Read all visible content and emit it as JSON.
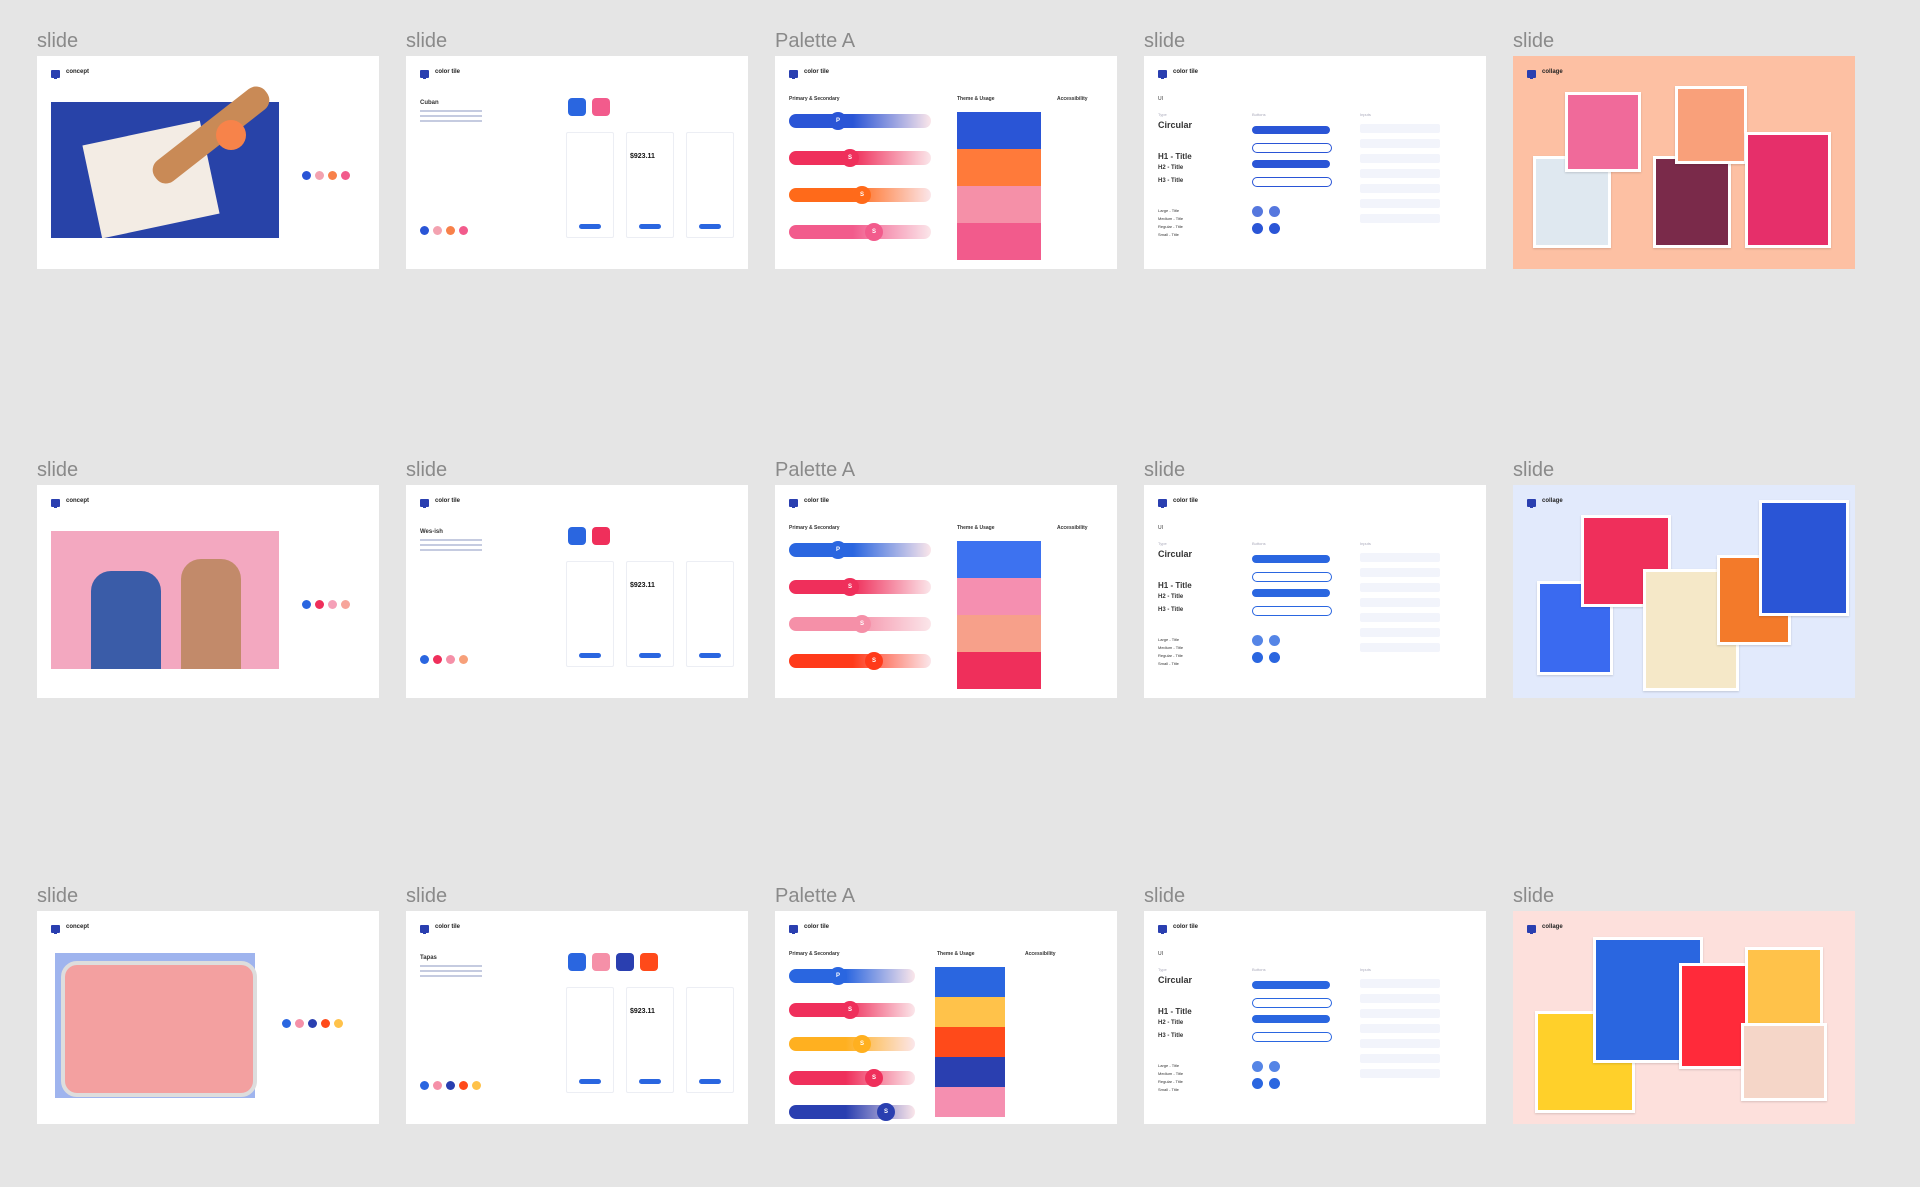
{
  "frames": [
    {
      "label": "slide",
      "kind": "concept",
      "title": "concept",
      "dots": [
        "#2a55d6",
        "#f3a2b0",
        "#f8814a",
        "#f25b8c"
      ]
    },
    {
      "label": "slide",
      "kind": "tile",
      "title": "color tile",
      "heading": "Cuban",
      "amount": "$923.11",
      "dots": [
        "#2a55d6",
        "#f3a2b0",
        "#f8814a",
        "#f25b8c"
      ],
      "tiles": [
        "#2a66e0",
        "#f25b8c"
      ]
    },
    {
      "label": "Palette A",
      "kind": "palette",
      "title": "color tile",
      "col1": "Primary & Secondary",
      "col2": "Theme & Usage",
      "col3": "Accessibility",
      "bars": [
        "#2a55d6",
        "#ef2f5b",
        "#ff6a1a",
        "#f25b8c"
      ],
      "swatches": [
        "#2a55d6",
        "#ff7a3a",
        "#f590a8",
        "#f25b8c"
      ],
      "knobs": [
        "P",
        "S",
        "S",
        "S"
      ]
    },
    {
      "label": "slide",
      "kind": "ui",
      "title": "color tile",
      "sec": "UI",
      "type_label": "Type",
      "big": "Circular",
      "h1": "H1 - Title",
      "h2": "H2 - Title",
      "h3": "H3 - Title",
      "btn_col": "Buttons",
      "inp_col": "Inputs",
      "sizes": [
        "Large - Title",
        "Medium - Title",
        "Regular - Title",
        "Small - Title"
      ],
      "accent": "#2a55d6"
    },
    {
      "label": "slide",
      "kind": "collage",
      "title": "collage",
      "bg": "#fdc0a3"
    },
    {
      "label": "slide",
      "kind": "concept",
      "title": "concept",
      "dots": [
        "#2a66e0",
        "#ef2f5b",
        "#f5a0b8",
        "#f7a59b"
      ]
    },
    {
      "label": "slide",
      "kind": "tile",
      "title": "color tile",
      "heading": "Wes-ish",
      "amount": "$923.11",
      "dots": [
        "#2a66e0",
        "#ef2f5b",
        "#f590a8",
        "#f7a07a"
      ],
      "tiles": [
        "#2a66e0",
        "#ef2f5b"
      ]
    },
    {
      "label": "Palette A",
      "kind": "palette",
      "title": "color tile",
      "col1": "Primary & Secondary",
      "col2": "Theme & Usage",
      "col3": "Accessibility",
      "bars": [
        "#2a66e0",
        "#ef2f5b",
        "#f590a8",
        "#ff3a1a"
      ],
      "swatches": [
        "#3d72f0",
        "#f58fb0",
        "#f7a08a",
        "#ef2f5b"
      ],
      "knobs": [
        "P",
        "S",
        "S",
        "S"
      ]
    },
    {
      "label": "slide",
      "kind": "ui",
      "title": "color tile",
      "sec": "UI",
      "type_label": "Type",
      "big": "Circular",
      "h1": "H1 - Title",
      "h2": "H2 - Title",
      "h3": "H3 - Title",
      "btn_col": "Buttons",
      "inp_col": "Inputs",
      "sizes": [
        "Large - Title",
        "Medium - Title",
        "Regular - Title",
        "Small - Title"
      ],
      "accent": "#2a66e0"
    },
    {
      "label": "slide",
      "kind": "collage",
      "title": "collage",
      "bg": "#e2eafc"
    },
    {
      "label": "slide",
      "kind": "concept",
      "title": "concept",
      "dots": [
        "#2a66e0",
        "#f590a8",
        "#2a3fb0",
        "#ff4a1a",
        "#ffc24a"
      ]
    },
    {
      "label": "slide",
      "kind": "tile",
      "title": "color tile",
      "heading": "Tapas",
      "amount": "$923.11",
      "dots": [
        "#2a66e0",
        "#f590a8",
        "#2a3fb0",
        "#ff4a1a",
        "#ffc24a"
      ],
      "tiles": [
        "#2a66e0",
        "#f590a8",
        "#2a3fb0",
        "#ff4a1a"
      ]
    },
    {
      "label": "Palette A",
      "kind": "palette",
      "title": "color tile",
      "col1": "Primary & Secondary",
      "col2": "Theme & Usage",
      "col3": "Accessibility",
      "bars": [
        "#2a66e0",
        "#ef2f5b",
        "#ffb020",
        "#ef2f5b",
        "#2a3fb0"
      ],
      "swatches": [
        "#2a66e0",
        "#ffc24a",
        "#ff4a1a",
        "#2a3fb0",
        "#f58fb0"
      ],
      "knobs": [
        "P",
        "S",
        "S",
        "S",
        "S"
      ]
    },
    {
      "label": "slide",
      "kind": "ui",
      "title": "color tile",
      "sec": "UI",
      "type_label": "Type",
      "big": "Circular",
      "h1": "H1 - Title",
      "h2": "H2 - Title",
      "h3": "H3 - Title",
      "btn_col": "Buttons",
      "inp_col": "Inputs",
      "sizes": [
        "Large - Title",
        "Medium - Title",
        "Regular - Title",
        "Small - Title"
      ],
      "accent": "#2a66e0"
    },
    {
      "label": "slide",
      "kind": "collage",
      "title": "collage",
      "bg": "#fde0dc"
    }
  ]
}
